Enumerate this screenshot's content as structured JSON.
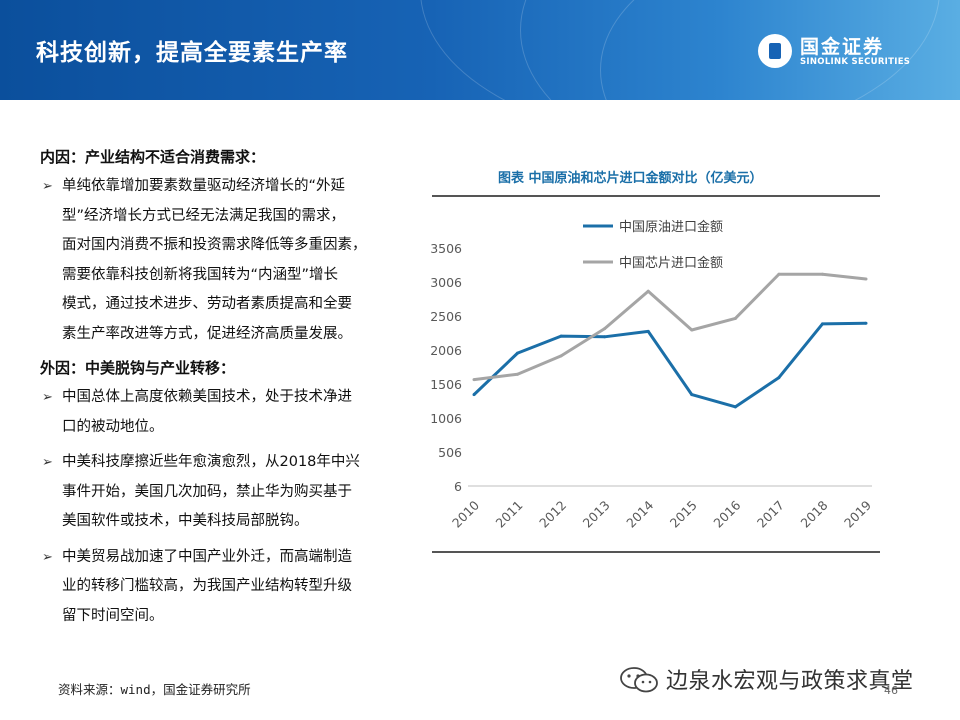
{
  "header": {
    "title": "科技创新，提高全要素生产率",
    "logo_cn": "国金证券",
    "logo_en": "SINOLINK SECURITIES"
  },
  "left": {
    "internal_heading": "内因：产业结构不适合消费需求：",
    "internal_bullets": [
      [
        "单纯依靠增加要素数量驱动经济增长的“外延",
        "型”经济增长方式已经无法满足我国的需求，",
        "面对国内消费不振和投资需求降低等多重因素，",
        "需要依靠科技创新将我国转为“内涵型”增长",
        "模式，通过技术进步、劳动者素质提高和全要",
        "素生产率改进等方式，促进经济高质量发展。"
      ]
    ],
    "external_heading": "外因：中美脱钩与产业转移：",
    "external_bullets": [
      [
        "中国总体上高度依赖美国技术，处于技术净进",
        "口的被动地位。"
      ],
      [
        "中美科技摩擦近些年愈演愈烈，从2018年中兴",
        "事件开始，美国几次加码，禁止华为购买基于",
        "美国软件或技术，中美科技局部脱钩。"
      ],
      [
        "中美贸易战加速了中国产业外迁，而高端制造",
        "业的转移门槛较高，为我国产业结构转型升级",
        "留下时间空间。"
      ]
    ],
    "bullet_marker": "➢"
  },
  "chart_title": "图表  中国原油和芯片进口金额对比（亿美元）",
  "chart_data": {
    "type": "line",
    "title": "图表  中国原油和芯片进口金额对比（亿美元）",
    "x": [
      "2010",
      "2011",
      "2012",
      "2013",
      "2014",
      "2015",
      "2016",
      "2017",
      "2018",
      "2019"
    ],
    "series": [
      {
        "name": "中国原油进口金额",
        "color": "#1b6fa8",
        "values": [
          1350,
          1960,
          2210,
          2200,
          2280,
          1350,
          1170,
          1600,
          2390,
          2400
        ]
      },
      {
        "name": "中国芯片进口金额",
        "color": "#a5a5a5",
        "values": [
          1570,
          1650,
          1920,
          2320,
          2870,
          2300,
          2470,
          3120,
          3120,
          3050
        ]
      }
    ],
    "yticks": [
      "3506",
      "3006",
      "2506",
      "2006",
      "1506",
      "1006",
      "506",
      "6"
    ],
    "ylim": [
      6,
      3506
    ],
    "legend_position": "top-left",
    "grid": false
  },
  "footer": {
    "source": "资料来源：wind，国金证券研究所",
    "watermark": "边泉水宏观与政策求真堂",
    "page": "46"
  }
}
